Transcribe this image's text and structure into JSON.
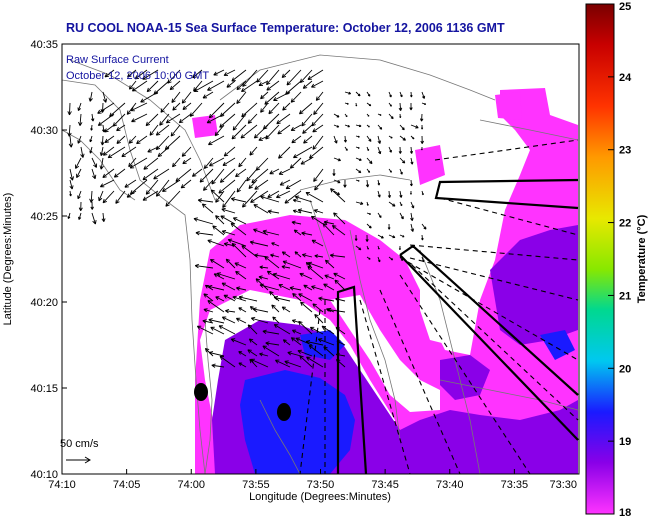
{
  "title": "RU COOL  NOAA-15  Sea Surface Temperature:  October 12, 2006 1136 GMT",
  "legend": {
    "line1": "Raw Surface Current",
    "line2": "October 12, 2006 10:00 GMT"
  },
  "scale_label": "50 cm/s",
  "x_axis": {
    "label": "Longitude (Degrees:Minutes)",
    "ticks": [
      "74:10",
      "74:05",
      "74:00",
      "73:55",
      "73:50",
      "73:45",
      "73:40",
      "73:35",
      "73:30"
    ]
  },
  "y_axis": {
    "label": "Latitude (Degrees:Minutes)",
    "ticks": [
      "40:35",
      "40:30",
      "40:25",
      "40:20",
      "40:15",
      "40:10"
    ]
  },
  "colorbar": {
    "label": "Temperature (°C)",
    "ticks": [
      "25",
      "24",
      "23",
      "22",
      "21",
      "20",
      "19",
      "18"
    ],
    "min": 18,
    "max": 25
  },
  "colors": {
    "title": "#1414a0",
    "sst_warm": "#ff33ff",
    "sst_mid": "#8a00e8",
    "sst_cold": "#1a1aff",
    "land": "#ffffff",
    "arrows": "#000000"
  }
}
